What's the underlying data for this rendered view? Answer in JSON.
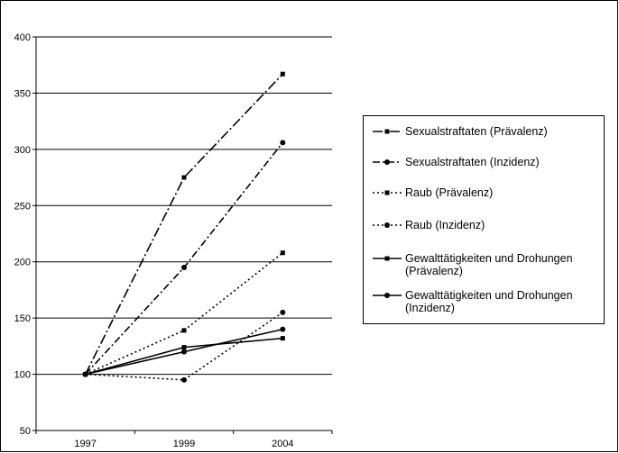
{
  "chart_data": {
    "type": "line",
    "title": "",
    "xlabel": "",
    "ylabel": "",
    "categories": [
      "1997",
      "1999",
      "2004"
    ],
    "ylim": [
      50,
      400
    ],
    "yticks": [
      "50",
      "100",
      "150",
      "200",
      "250",
      "300",
      "350",
      "400"
    ],
    "grid": "horizontal",
    "legend_position": "right",
    "series": [
      {
        "name": "Sexualstraftaten (Prävalenz)",
        "values": [
          100,
          275,
          367
        ],
        "dash": "dashdot-long",
        "marker": "square"
      },
      {
        "name": "Sexualstraftaten (Inzidenz)",
        "values": [
          100,
          195,
          306
        ],
        "dash": "dashdot",
        "marker": "circle"
      },
      {
        "name": "Raub (Prävalenz)",
        "values": [
          100,
          139,
          208
        ],
        "dash": "dotted",
        "marker": "square"
      },
      {
        "name": "Raub (Inzidenz)",
        "values": [
          100,
          95,
          155
        ],
        "dash": "dotted",
        "marker": "circle"
      },
      {
        "name": "Gewalttätigkeiten und Drohungen (Prävalenz)",
        "values": [
          100,
          124,
          132
        ],
        "dash": "solid",
        "marker": "square"
      },
      {
        "name": "Gewalttätigkeiten und Drohungen (Inzidenz)",
        "values": [
          100,
          120,
          140
        ],
        "dash": "solid",
        "marker": "circle"
      }
    ],
    "legend_labels": [
      [
        "Sexualstraftaten (Prävalenz)"
      ],
      [
        "Sexualstraftaten (Inzidenz)"
      ],
      [
        "Raub (Prävalenz)"
      ],
      [
        "Raub (Inzidenz)"
      ],
      [
        "Gewalttätigkeiten und Drohungen",
        "(Prävalenz)"
      ],
      [
        "Gewalttätigkeiten und Drohungen",
        "(Inzidenz)"
      ]
    ],
    "colors": {
      "line": "#000000",
      "grid": "#000000",
      "background": "#ffffff"
    }
  }
}
